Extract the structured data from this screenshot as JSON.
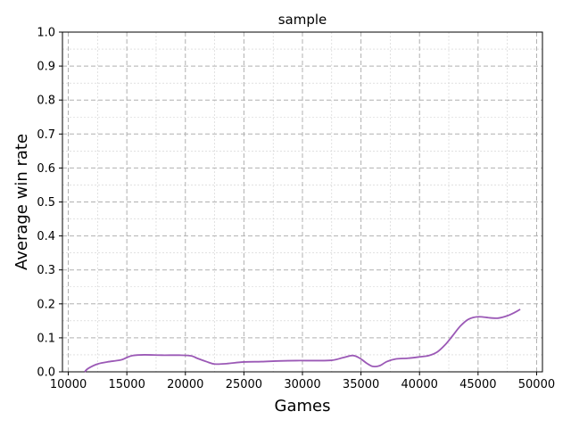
{
  "chart_data": {
    "type": "line",
    "title": "sample",
    "xlabel": "Games",
    "ylabel": "Average win rate",
    "xlim": [
      9500,
      50500
    ],
    "ylim": [
      0,
      1.0
    ],
    "x_ticks": [
      10000,
      15000,
      20000,
      25000,
      30000,
      35000,
      40000,
      45000,
      50000
    ],
    "y_ticks": [
      0.0,
      0.1,
      0.2,
      0.3,
      0.4,
      0.5,
      0.6,
      0.7,
      0.8,
      0.9,
      1.0
    ],
    "x_tick_labels": [
      "10000",
      "15000",
      "20000",
      "25000",
      "30000",
      "35000",
      "40000",
      "45000",
      "50000"
    ],
    "y_tick_labels": [
      "0.0",
      "0.1",
      "0.2",
      "0.3",
      "0.4",
      "0.5",
      "0.6",
      "0.7",
      "0.8",
      "0.9",
      "1.0"
    ],
    "grid": true,
    "series": [
      {
        "color": "#9b59b6",
        "x": [
          11400,
          11700,
          12500,
          13500,
          14500,
          15000,
          15500,
          16500,
          18000,
          19500,
          20500,
          21000,
          21800,
          22500,
          23500,
          25000,
          26500,
          28000,
          29500,
          31000,
          32500,
          33500,
          34300,
          34900,
          35500,
          36000,
          36600,
          37200,
          38000,
          39000,
          40000,
          40800,
          41500,
          42200,
          42800,
          43500,
          44200,
          45000,
          46000,
          46700,
          47500,
          48200,
          48600
        ],
        "y": [
          0.0,
          0.01,
          0.023,
          0.03,
          0.035,
          0.042,
          0.048,
          0.05,
          0.049,
          0.049,
          0.047,
          0.04,
          0.03,
          0.023,
          0.024,
          0.029,
          0.03,
          0.032,
          0.033,
          0.033,
          0.034,
          0.042,
          0.048,
          0.04,
          0.025,
          0.016,
          0.018,
          0.03,
          0.038,
          0.04,
          0.044,
          0.048,
          0.058,
          0.08,
          0.105,
          0.135,
          0.155,
          0.162,
          0.159,
          0.158,
          0.165,
          0.176,
          0.184
        ]
      }
    ]
  }
}
